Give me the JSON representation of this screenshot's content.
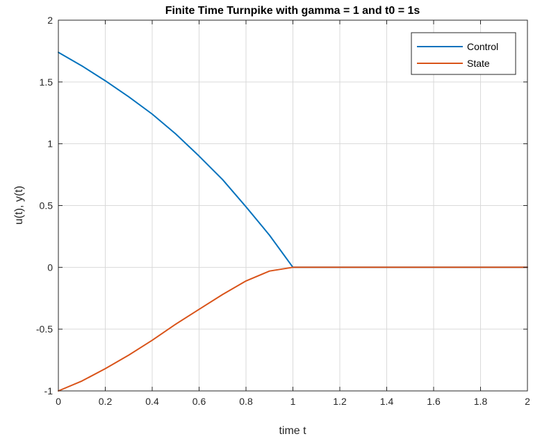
{
  "chart_data": {
    "type": "line",
    "title": "Finite Time Turnpike with gamma = 1 and t0 = 1s",
    "xlabel": "time t",
    "ylabel": "u(t), y(t)",
    "xlim": [
      0,
      2
    ],
    "ylim": [
      -1,
      2
    ],
    "xticks": [
      0,
      0.2,
      0.4,
      0.6,
      0.8,
      1,
      1.2,
      1.4,
      1.6,
      1.8,
      2
    ],
    "xtick_labels": [
      "0",
      "0.2",
      "0.4",
      "0.6",
      "0.8",
      "1",
      "1.2",
      "1.4",
      "1.6",
      "1.8",
      "2"
    ],
    "yticks": [
      -1,
      -0.5,
      0,
      0.5,
      1,
      1.5,
      2
    ],
    "ytick_labels": [
      "-1",
      "-0.5",
      "0",
      "0.5",
      "1",
      "1.5",
      "2"
    ],
    "grid": true,
    "legend_position": "top-right",
    "x": [
      0,
      0.1,
      0.2,
      0.3,
      0.4,
      0.5,
      0.6,
      0.7,
      0.8,
      0.9,
      1,
      1.2,
      1.4,
      1.6,
      1.8,
      2
    ],
    "series": [
      {
        "name": "Control",
        "color": "#0072BD",
        "values": [
          1.74,
          1.63,
          1.51,
          1.38,
          1.24,
          1.08,
          0.9,
          0.71,
          0.49,
          0.26,
          0,
          0,
          0,
          0,
          0,
          0
        ]
      },
      {
        "name": "State",
        "color": "#D95319",
        "values": [
          -1,
          -0.92,
          -0.82,
          -0.71,
          -0.59,
          -0.46,
          -0.34,
          -0.22,
          -0.11,
          -0.03,
          0,
          0,
          0,
          0,
          0,
          0
        ]
      }
    ]
  }
}
